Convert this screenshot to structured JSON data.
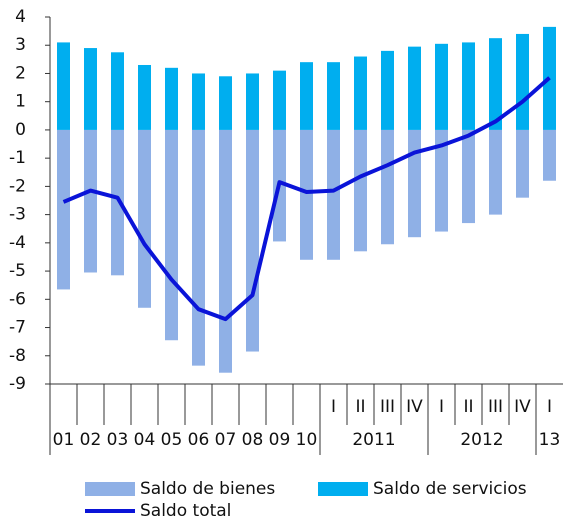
{
  "chart_data": {
    "type": "bar-line",
    "categories": [
      null,
      null,
      null,
      null,
      null,
      null,
      null,
      null,
      null,
      null,
      "I",
      "II",
      "III",
      "IV",
      "I",
      "II",
      "III",
      "IV",
      "I"
    ],
    "groups": [
      {
        "label": "01",
        "size": 1
      },
      {
        "label": "02",
        "size": 1
      },
      {
        "label": "03",
        "size": 1
      },
      {
        "label": "04",
        "size": 1
      },
      {
        "label": "05",
        "size": 1
      },
      {
        "label": "06",
        "size": 1
      },
      {
        "label": "07",
        "size": 1
      },
      {
        "label": "08",
        "size": 1
      },
      {
        "label": "09",
        "size": 1
      },
      {
        "label": "10",
        "size": 1
      },
      {
        "label": "2011",
        "size": 4
      },
      {
        "label": "2012",
        "size": 4
      },
      {
        "label": "13",
        "size": 1
      }
    ],
    "series": [
      {
        "name": "Saldo de bienes",
        "color": "#8fb0e6",
        "kind": "bar",
        "values": [
          -5.65,
          -5.05,
          -5.15,
          -6.3,
          -7.45,
          -8.35,
          -8.6,
          -7.85,
          -3.95,
          -4.6,
          -4.6,
          -4.3,
          -4.05,
          -3.8,
          -3.6,
          -3.3,
          -3.0,
          -2.4,
          -1.8
        ]
      },
      {
        "name": "Saldo de servicios",
        "color": "#00aeef",
        "kind": "bar",
        "values": [
          3.1,
          2.9,
          2.75,
          2.3,
          2.2,
          2.0,
          1.9,
          2.0,
          2.1,
          2.4,
          2.4,
          2.6,
          2.8,
          2.95,
          3.05,
          3.1,
          3.25,
          3.4,
          3.65
        ]
      },
      {
        "name": "Saldo total",
        "color": "#0a14d8",
        "kind": "line",
        "values": [
          -2.55,
          -2.15,
          -2.4,
          -4.05,
          -5.3,
          -6.35,
          -6.7,
          -5.85,
          -1.85,
          -2.2,
          -2.15,
          -1.65,
          -1.25,
          -0.8,
          -0.55,
          -0.2,
          0.3,
          1.0,
          1.85
        ]
      }
    ],
    "ylim": [
      -9,
      4
    ],
    "yticks": [
      -9,
      -8,
      -7,
      -6,
      -5,
      -4,
      -3,
      -2,
      -1,
      0,
      1,
      2,
      3,
      4
    ]
  }
}
